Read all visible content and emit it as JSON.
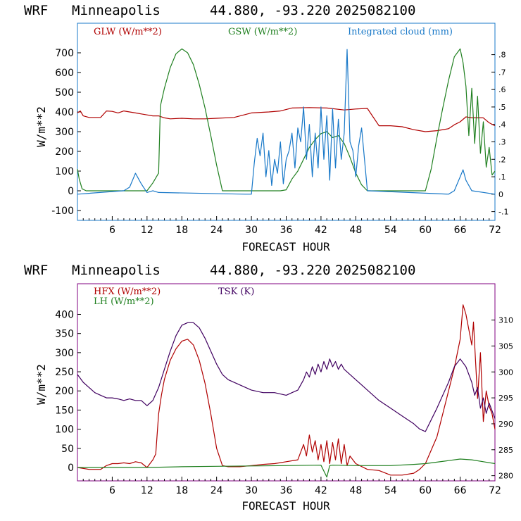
{
  "chart_data": [
    {
      "type": "line",
      "header": {
        "model": "WRF",
        "location": "Minneapolis",
        "coords": "44.880, -93.220",
        "init": "2025082100"
      },
      "xlabel": "FORECAST HOUR",
      "ylabel": "W/m**2",
      "xlim": [
        0,
        72
      ],
      "ylim": [
        -150,
        850
      ],
      "y_ticks": [
        "-100",
        "0",
        "100",
        "200",
        "300",
        "400",
        "500",
        "600",
        "700"
      ],
      "x_ticks": [
        "6",
        "12",
        "18",
        "24",
        "30",
        "36",
        "42",
        "48",
        "54",
        "60",
        "66",
        "72"
      ],
      "y2lim": [
        -0.15,
        0.98
      ],
      "y2_ticks": [
        "-.1",
        "0",
        ".1",
        ".2",
        ".3",
        ".4",
        ".5",
        ".6",
        ".7",
        ".8"
      ],
      "legend_placement": "top",
      "series": [
        {
          "name": "GLW (W/m**2)",
          "color": "#b00000",
          "axis": "left",
          "x": [
            0,
            0.5,
            1,
            2,
            3,
            4,
            5,
            6,
            7,
            8,
            9,
            10,
            11,
            12,
            13,
            14,
            15,
            16,
            18,
            20,
            22,
            24,
            27,
            30,
            33,
            35,
            37,
            40,
            43,
            46,
            48,
            50,
            52,
            54,
            56,
            58,
            60,
            62,
            64,
            65,
            66,
            67,
            68,
            70,
            71,
            72
          ],
          "values": [
            395,
            405,
            380,
            372,
            372,
            372,
            405,
            403,
            395,
            405,
            400,
            395,
            390,
            385,
            380,
            380,
            370,
            365,
            368,
            365,
            365,
            368,
            372,
            395,
            400,
            405,
            420,
            422,
            420,
            410,
            415,
            418,
            330,
            330,
            325,
            310,
            300,
            305,
            315,
            335,
            350,
            375,
            370,
            370,
            345,
            330
          ]
        },
        {
          "name": "GSW (W/m**2)",
          "color": "#208020",
          "axis": "left",
          "x": [
            0,
            0.3,
            0.8,
            1.5,
            12,
            13,
            14,
            14.3,
            15,
            16,
            17,
            18,
            19,
            20,
            21,
            22,
            23,
            24,
            25,
            26,
            30,
            31,
            32,
            33,
            34,
            35,
            36,
            37,
            38,
            39,
            40,
            41,
            42,
            43,
            44,
            45,
            46,
            47,
            48,
            49,
            50,
            54,
            60,
            61,
            62,
            63,
            64,
            65,
            66,
            66.5,
            67,
            67.5,
            68,
            68.5,
            69,
            69.5,
            70,
            70.5,
            71,
            71.5,
            72
          ],
          "values": [
            110,
            60,
            10,
            0,
            0,
            40,
            90,
            430,
            520,
            625,
            695,
            720,
            700,
            640,
            540,
            420,
            280,
            130,
            0,
            0,
            0,
            0,
            0,
            0,
            0,
            0,
            5,
            60,
            100,
            160,
            220,
            260,
            290,
            300,
            270,
            280,
            240,
            170,
            90,
            30,
            0,
            0,
            0,
            110,
            270,
            420,
            560,
            680,
            720,
            650,
            530,
            280,
            520,
            240,
            480,
            190,
            350,
            120,
            220,
            80,
            100
          ]
        },
        {
          "name": "Integrated cloud (mm)",
          "color": "#1878c8",
          "axis": "right",
          "x": [
            0,
            8,
            9,
            10,
            11,
            12,
            13,
            14,
            29,
            30,
            30.5,
            31,
            31.5,
            32,
            32.5,
            33,
            33.5,
            34,
            34.5,
            35,
            35.5,
            36,
            36.5,
            37,
            37.5,
            38,
            38.5,
            39,
            39.5,
            40,
            40.5,
            41,
            41.5,
            42,
            42.5,
            43,
            43.5,
            44,
            44.5,
            45,
            45.5,
            46,
            46.5,
            47,
            47.5,
            48,
            48.5,
            49,
            49.5,
            50,
            64,
            65,
            66,
            66.5,
            67,
            68,
            72
          ],
          "values": [
            0,
            0.02,
            0.04,
            0.12,
            0.06,
            0.01,
            0.02,
            0.01,
            0,
            0,
            0.18,
            0.32,
            0.22,
            0.35,
            0.1,
            0.25,
            0.05,
            0.2,
            0.12,
            0.3,
            0.06,
            0.2,
            0.25,
            0.35,
            0.15,
            0.38,
            0.3,
            0.5,
            0.2,
            0.4,
            0.1,
            0.35,
            0.15,
            0.5,
            0.2,
            0.45,
            0.08,
            0.49,
            0.15,
            0.43,
            0.2,
            0.35,
            0.83,
            0.3,
            0.25,
            0.1,
            0.28,
            0.38,
            0.2,
            0.02,
            0,
            0.02,
            0.1,
            0.14,
            0.08,
            0.02,
            0
          ]
        }
      ]
    },
    {
      "type": "line",
      "header": {
        "model": "WRF",
        "location": "Minneapolis",
        "coords": "44.880, -93.220",
        "init": "2025082100"
      },
      "xlabel": "FORECAST HOUR",
      "ylabel": "W/m**2",
      "xlim": [
        0,
        72
      ],
      "ylim": [
        -35,
        480
      ],
      "y_ticks": [
        "0",
        "50",
        "100",
        "150",
        "200",
        "250",
        "300",
        "350",
        "400"
      ],
      "x_ticks": [
        "6",
        "12",
        "18",
        "24",
        "30",
        "36",
        "42",
        "48",
        "54",
        "60",
        "66",
        "72"
      ],
      "y2lim": [
        279,
        317
      ],
      "y2_ticks": [
        "280",
        "285",
        "290",
        "295",
        "300",
        "305",
        "310"
      ],
      "legend_placement": "top-left",
      "series": [
        {
          "name": "HFX (W/m**2)",
          "color": "#b00000",
          "axis": "left",
          "x": [
            0,
            2,
            4,
            5,
            6,
            7,
            8,
            9,
            10,
            11,
            12,
            13,
            13.5,
            14,
            14.5,
            15,
            16,
            17,
            18,
            19,
            20,
            21,
            22,
            23,
            24,
            25,
            26,
            28,
            30,
            32,
            34,
            36,
            38,
            39,
            39.5,
            40,
            40.5,
            41,
            41.5,
            42,
            42.5,
            43,
            43.5,
            44,
            44.5,
            45,
            45.5,
            46,
            46.5,
            47,
            48,
            50,
            52,
            54,
            56,
            58,
            59,
            60,
            62,
            64,
            65,
            66,
            66.5,
            67,
            68,
            68.3,
            69,
            69.5,
            70,
            70.5,
            71,
            71.5,
            72
          ],
          "values": [
            0,
            -5,
            -5,
            5,
            10,
            10,
            12,
            10,
            15,
            12,
            0,
            20,
            35,
            140,
            190,
            230,
            280,
            310,
            330,
            335,
            320,
            280,
            220,
            140,
            50,
            5,
            2,
            2,
            5,
            8,
            10,
            15,
            20,
            60,
            30,
            85,
            40,
            70,
            20,
            60,
            15,
            70,
            10,
            65,
            20,
            75,
            10,
            60,
            5,
            30,
            10,
            -5,
            -8,
            -20,
            -20,
            -15,
            -5,
            10,
            80,
            200,
            260,
            335,
            425,
            400,
            320,
            380,
            180,
            300,
            120,
            200,
            160,
            140,
            100
          ]
        },
        {
          "name": "TSK (K)",
          "color": "#400060",
          "axis": "right",
          "x": [
            0,
            1,
            2,
            3,
            4,
            5,
            6,
            7,
            8,
            9,
            10,
            11,
            12,
            12.5,
            13,
            14,
            15,
            16,
            17,
            18,
            19,
            20,
            21,
            22,
            23,
            24,
            25,
            26,
            28,
            30,
            32,
            34,
            36,
            37,
            38,
            39,
            39.5,
            40,
            40.5,
            41,
            41.5,
            42,
            42.5,
            43,
            43.5,
            44,
            44.5,
            45,
            45.5,
            46,
            47,
            48,
            50,
            52,
            54,
            56,
            58,
            59,
            60,
            62,
            64,
            65,
            66,
            67,
            68,
            68.5,
            69,
            69.5,
            70,
            70.5,
            71,
            71.5,
            72
          ],
          "values": [
            299.5,
            298,
            297,
            296,
            295.5,
            295,
            295,
            294.8,
            294.5,
            294.8,
            294.5,
            294.5,
            293.5,
            294,
            294.5,
            297,
            300.5,
            304,
            307,
            309,
            309.5,
            309.5,
            308.5,
            306.5,
            304,
            301.5,
            299.5,
            298.5,
            297.5,
            296.5,
            296,
            296,
            295.5,
            296,
            296.5,
            298.5,
            300,
            299,
            301,
            299.5,
            301.5,
            300,
            302,
            300.5,
            302.5,
            301,
            302,
            300.5,
            301.5,
            300.5,
            299.5,
            298.5,
            296.5,
            294.5,
            293,
            291.5,
            290,
            289,
            288.5,
            293,
            298,
            301,
            302.5,
            301,
            298,
            295.5,
            297,
            293,
            295,
            292,
            294,
            292.5,
            291
          ]
        },
        {
          "name": "LH  (W/m**2)",
          "color": "#208020",
          "axis": "left",
          "x": [
            0,
            6,
            12,
            18,
            24,
            30,
            36,
            42,
            43,
            43.5,
            44,
            48,
            54,
            58,
            60,
            64,
            66,
            68,
            70,
            72
          ],
          "values": [
            0,
            0,
            0,
            2,
            3,
            4,
            5,
            6,
            -25,
            5,
            6,
            5,
            5,
            8,
            10,
            18,
            22,
            20,
            15,
            10
          ]
        }
      ]
    }
  ]
}
